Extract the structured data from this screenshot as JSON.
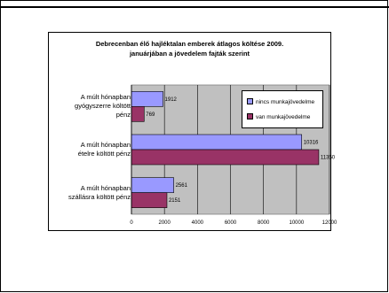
{
  "chart_data": {
    "type": "bar",
    "orientation": "horizontal",
    "title": "Debrecenban élő hajléktalan emberek átlagos költése 2009. januárjában a jövedelem fajták szerint",
    "title_lines": [
      "Debrecenban élő hajléktalan emberek átlagos költése 2009.",
      "januárjában a jövedelem fajták szerint"
    ],
    "categories": [
      "A múlt hónapban gyógyszerre költött pénz",
      "A múlt hónapban ételre költött pénz",
      "A múlt hónapban szállásra költött pénz"
    ],
    "category_lines": [
      [
        "A múlt hónapban",
        "gyógyszerre költött",
        "pénz"
      ],
      [
        "A múlt hónapban",
        "ételre költött pénz"
      ],
      [
        "A múlt hónapban",
        "szállásra költött pénz"
      ]
    ],
    "series": [
      {
        "name": "nincs munkajövedelme",
        "values": [
          1912,
          10316,
          2561
        ],
        "color": "#9999ff"
      },
      {
        "name": "van munkajövedelme",
        "values": [
          769,
          11350,
          2151
        ],
        "color": "#993366"
      }
    ],
    "xlim": [
      0,
      12000
    ],
    "xticks": [
      "0",
      "2000",
      "4000",
      "6000",
      "8000",
      "10000",
      "12000"
    ],
    "grid": true,
    "plot_background": "#c0c0c0",
    "legend_position": "top-right"
  }
}
